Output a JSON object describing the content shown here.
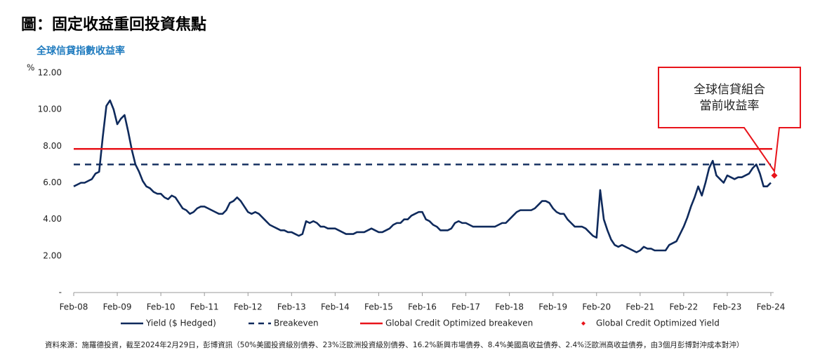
{
  "header": {
    "title": "圖：固定收益重回投資焦點"
  },
  "chart_data": {
    "type": "line",
    "title": "全球信貸指數收益率",
    "y_unit": "%",
    "annotation": [
      "全球信貸組合",
      "當前收益率"
    ],
    "x": [
      "Feb-08",
      "Mar-08",
      "Apr-08",
      "May-08",
      "Jun-08",
      "Jul-08",
      "Aug-08",
      "Sep-08",
      "Oct-08",
      "Nov-08",
      "Dec-08",
      "Jan-09",
      "Feb-09",
      "Mar-09",
      "Apr-09",
      "May-09",
      "Jun-09",
      "Jul-09",
      "Aug-09",
      "Sep-09",
      "Oct-09",
      "Nov-09",
      "Dec-09",
      "Jan-10",
      "Feb-10",
      "Mar-10",
      "Apr-10",
      "May-10",
      "Jun-10",
      "Jul-10",
      "Aug-10",
      "Sep-10",
      "Oct-10",
      "Nov-10",
      "Dec-10",
      "Jan-11",
      "Feb-11",
      "Mar-11",
      "Apr-11",
      "May-11",
      "Jun-11",
      "Jul-11",
      "Aug-11",
      "Sep-11",
      "Oct-11",
      "Nov-11",
      "Dec-11",
      "Jan-12",
      "Feb-12",
      "Mar-12",
      "Apr-12",
      "May-12",
      "Jun-12",
      "Jul-12",
      "Aug-12",
      "Sep-12",
      "Oct-12",
      "Nov-12",
      "Dec-12",
      "Jan-13",
      "Feb-13",
      "Mar-13",
      "Apr-13",
      "May-13",
      "Jun-13",
      "Jul-13",
      "Aug-13",
      "Sep-13",
      "Oct-13",
      "Nov-13",
      "Dec-13",
      "Jan-14",
      "Feb-14",
      "Mar-14",
      "Apr-14",
      "May-14",
      "Jun-14",
      "Jul-14",
      "Aug-14",
      "Sep-14",
      "Oct-14",
      "Nov-14",
      "Dec-14",
      "Jan-15",
      "Feb-15",
      "Mar-15",
      "Apr-15",
      "May-15",
      "Jun-15",
      "Jul-15",
      "Aug-15",
      "Sep-15",
      "Oct-15",
      "Nov-15",
      "Dec-15",
      "Jan-16",
      "Feb-16",
      "Mar-16",
      "Apr-16",
      "May-16",
      "Jun-16",
      "Jul-16",
      "Aug-16",
      "Sep-16",
      "Oct-16",
      "Nov-16",
      "Dec-16",
      "Jan-17",
      "Feb-17",
      "Mar-17",
      "Apr-17",
      "May-17",
      "Jun-17",
      "Jul-17",
      "Aug-17",
      "Sep-17",
      "Oct-17",
      "Nov-17",
      "Dec-17",
      "Jan-18",
      "Feb-18",
      "Mar-18",
      "Apr-18",
      "May-18",
      "Jun-18",
      "Jul-18",
      "Aug-18",
      "Sep-18",
      "Oct-18",
      "Nov-18",
      "Dec-18",
      "Jan-19",
      "Feb-19",
      "Mar-19",
      "Apr-19",
      "May-19",
      "Jun-19",
      "Jul-19",
      "Aug-19",
      "Sep-19",
      "Oct-19",
      "Nov-19",
      "Dec-19",
      "Jan-20",
      "Feb-20",
      "Mar-20",
      "Apr-20",
      "May-20",
      "Jun-20",
      "Jul-20",
      "Aug-20",
      "Sep-20",
      "Oct-20",
      "Nov-20",
      "Dec-20",
      "Jan-21",
      "Feb-21",
      "Mar-21",
      "Apr-21",
      "May-21",
      "Jun-21",
      "Jul-21",
      "Aug-21",
      "Sep-21",
      "Oct-21",
      "Nov-21",
      "Dec-21",
      "Jan-22",
      "Feb-22",
      "Mar-22",
      "Apr-22",
      "May-22",
      "Jun-22",
      "Jul-22",
      "Aug-22",
      "Sep-22",
      "Oct-22",
      "Nov-22",
      "Dec-22",
      "Jan-23",
      "Feb-23",
      "Mar-23",
      "Apr-23",
      "May-23",
      "Jun-23",
      "Jul-23",
      "Aug-23",
      "Sep-23",
      "Oct-23",
      "Nov-23",
      "Dec-23",
      "Jan-24",
      "Feb-24"
    ],
    "xticks": [
      "Feb-08",
      "Feb-09",
      "Feb-10",
      "Feb-11",
      "Feb-12",
      "Feb-13",
      "Feb-14",
      "Feb-15",
      "Feb-16",
      "Feb-17",
      "Feb-18",
      "Feb-19",
      "Feb-20",
      "Feb-21",
      "Feb-22",
      "Feb-23",
      "Feb-24"
    ],
    "ylim": [
      0,
      12
    ],
    "yticks": [
      {
        "value": 0,
        "label": "-"
      },
      {
        "value": 2,
        "label": "2.00"
      },
      {
        "value": 4,
        "label": "4.00"
      },
      {
        "value": 6,
        "label": "6.00"
      },
      {
        "value": 8,
        "label": "8.00"
      },
      {
        "value": 10,
        "label": "10.00"
      },
      {
        "value": 12,
        "label": "12.00"
      }
    ],
    "grid": false,
    "series": [
      {
        "name": "Yield ($ Hedged)",
        "color": "#0f2a5c",
        "style": "solid",
        "values": [
          5.8,
          5.9,
          6.0,
          6.0,
          6.1,
          6.2,
          6.5,
          6.6,
          8.5,
          10.2,
          10.5,
          10.0,
          9.2,
          9.5,
          9.7,
          8.8,
          7.8,
          7.0,
          6.6,
          6.1,
          5.8,
          5.7,
          5.5,
          5.4,
          5.4,
          5.2,
          5.1,
          5.3,
          5.2,
          4.9,
          4.6,
          4.5,
          4.3,
          4.4,
          4.6,
          4.7,
          4.7,
          4.6,
          4.5,
          4.4,
          4.3,
          4.3,
          4.5,
          4.9,
          5.0,
          5.2,
          5.0,
          4.7,
          4.4,
          4.3,
          4.4,
          4.3,
          4.1,
          3.9,
          3.7,
          3.6,
          3.5,
          3.4,
          3.4,
          3.3,
          3.3,
          3.2,
          3.1,
          3.2,
          3.9,
          3.8,
          3.9,
          3.8,
          3.6,
          3.6,
          3.5,
          3.5,
          3.5,
          3.4,
          3.3,
          3.2,
          3.2,
          3.2,
          3.3,
          3.3,
          3.3,
          3.4,
          3.5,
          3.4,
          3.3,
          3.3,
          3.4,
          3.5,
          3.7,
          3.8,
          3.8,
          4.0,
          4.0,
          4.2,
          4.3,
          4.4,
          4.4,
          4.0,
          3.9,
          3.7,
          3.6,
          3.4,
          3.4,
          3.4,
          3.5,
          3.8,
          3.9,
          3.8,
          3.8,
          3.7,
          3.6,
          3.6,
          3.6,
          3.6,
          3.6,
          3.6,
          3.6,
          3.7,
          3.8,
          3.8,
          4.0,
          4.2,
          4.4,
          4.5,
          4.5,
          4.5,
          4.5,
          4.6,
          4.8,
          5.0,
          5.0,
          4.9,
          4.6,
          4.4,
          4.3,
          4.3,
          4.0,
          3.8,
          3.6,
          3.6,
          3.6,
          3.5,
          3.3,
          3.1,
          3.0,
          5.6,
          4.0,
          3.4,
          2.9,
          2.6,
          2.5,
          2.6,
          2.5,
          2.4,
          2.3,
          2.2,
          2.3,
          2.5,
          2.4,
          2.4,
          2.3,
          2.3,
          2.3,
          2.3,
          2.6,
          2.7,
          2.8,
          3.2,
          3.6,
          4.1,
          4.7,
          5.2,
          5.8,
          5.3,
          6.0,
          6.8,
          7.2,
          6.4,
          6.2,
          6.0,
          6.4,
          6.3,
          6.2,
          6.3,
          6.3,
          6.4,
          6.5,
          6.8,
          7.0,
          6.5,
          5.8,
          5.8,
          6.0
        ]
      },
      {
        "name": "Breakeven",
        "color": "#0f2a5c",
        "style": "dashed",
        "value": 7.0
      },
      {
        "name": "Global Credit Optimized breakeven",
        "color": "#e8141b",
        "style": "solid",
        "value": 7.85
      },
      {
        "name": "Global Credit Optimized Yield",
        "color": "#e8141b",
        "style": "diamond",
        "x": "Feb-24",
        "value": 6.4
      }
    ]
  },
  "footnote": "資料來源：施羅德投資，截至2024年2月29日，彭博資訊（50%美國投資級別債券、23%泛歐洲投資級別債券、16.2%新興市場債券、8.4%美國高收益債券、2.4%泛歐洲高收益債券，由3個月彭博對沖成本對沖）"
}
